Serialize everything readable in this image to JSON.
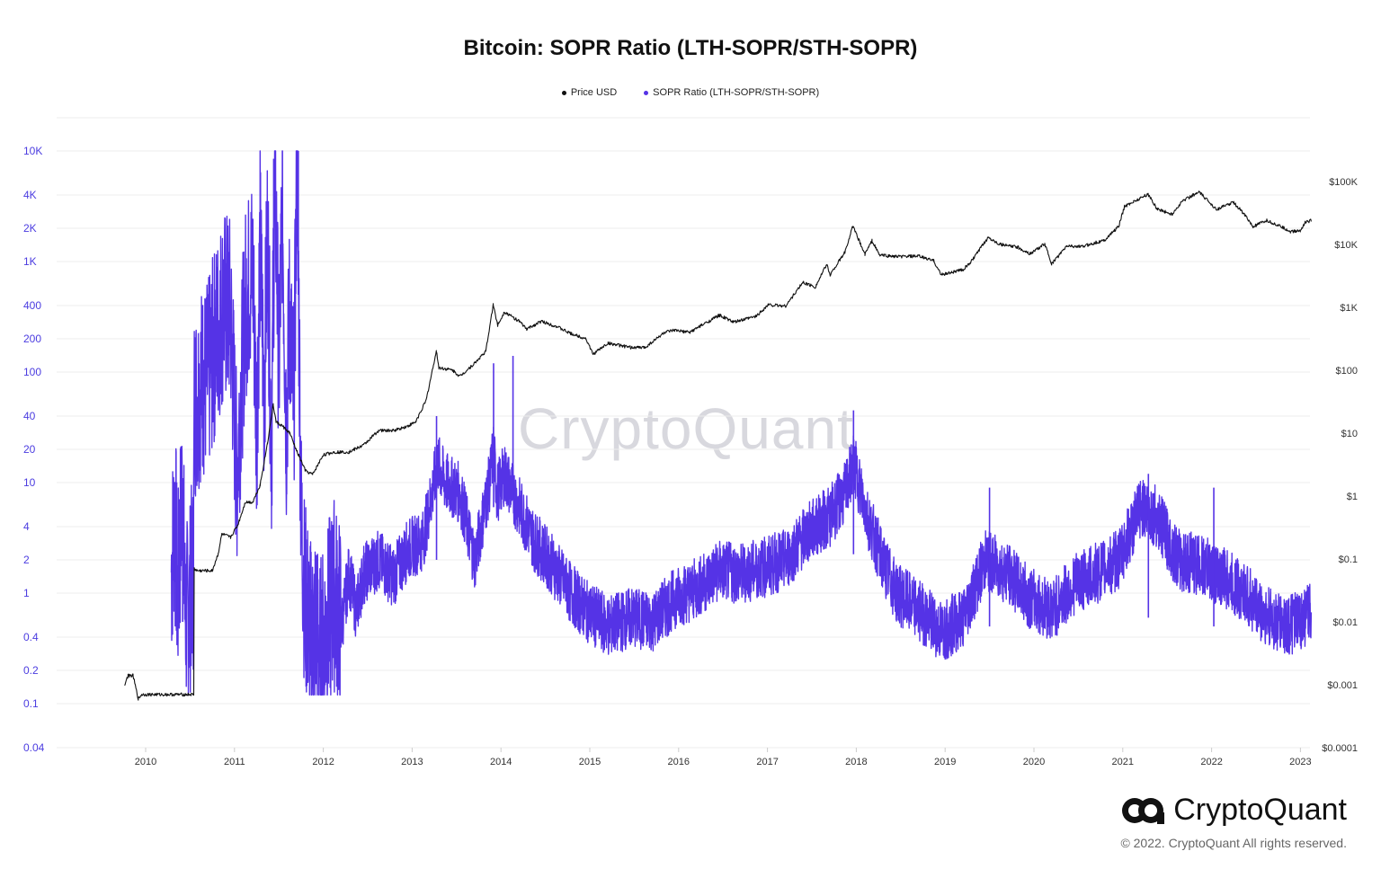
{
  "chart_data": {
    "type": "line",
    "title": "Bitcoin: SOPR Ratio (LTH-SOPR/STH-SOPR)",
    "legend_placement": "top-center",
    "grid": "horizontal",
    "x_axis": {
      "range": [
        "2009-06",
        "2023-01"
      ],
      "ticks": [
        "2010",
        "2011",
        "2012",
        "2013",
        "2014",
        "2015",
        "2016",
        "2017",
        "2018",
        "2019",
        "2020",
        "2021",
        "2022",
        "2023"
      ]
    },
    "y_left": {
      "scale": "log",
      "range": [
        0.04,
        10000
      ],
      "ticks": [
        {
          "v": 10000,
          "label": "10K"
        },
        {
          "v": 4000,
          "label": "4K"
        },
        {
          "v": 2000,
          "label": "2K"
        },
        {
          "v": 1000,
          "label": "1K"
        },
        {
          "v": 400,
          "label": "400"
        },
        {
          "v": 200,
          "label": "200"
        },
        {
          "v": 100,
          "label": "100"
        },
        {
          "v": 40,
          "label": "40"
        },
        {
          "v": 20,
          "label": "20"
        },
        {
          "v": 10,
          "label": "10"
        },
        {
          "v": 4,
          "label": "4"
        },
        {
          "v": 2,
          "label": "2"
        },
        {
          "v": 1,
          "label": "1"
        },
        {
          "v": 0.4,
          "label": "0.4"
        },
        {
          "v": 0.2,
          "label": "0.2"
        },
        {
          "v": 0.1,
          "label": "0.1"
        },
        {
          "v": 0.04,
          "label": "0.04"
        }
      ]
    },
    "y_right": {
      "scale": "log",
      "range": [
        0.0001,
        100000
      ],
      "ticks": [
        {
          "v": 100000,
          "label": "$100K"
        },
        {
          "v": 10000,
          "label": "$10K"
        },
        {
          "v": 1000,
          "label": "$1K"
        },
        {
          "v": 100,
          "label": "$100"
        },
        {
          "v": 10,
          "label": "$10"
        },
        {
          "v": 1,
          "label": "$1"
        },
        {
          "v": 0.1,
          "label": "$0.1"
        },
        {
          "v": 0.01,
          "label": "$0.01"
        },
        {
          "v": 0.001,
          "label": "$0.001"
        },
        {
          "v": 0.0001,
          "label": "$0.0001"
        }
      ]
    },
    "series": [
      {
        "name": "Price USD",
        "axis": "right",
        "color": "#111111",
        "points": [
          [
            "2009-10-05",
            0.001
          ],
          [
            "2009-10-20",
            0.0014
          ],
          [
            "2009-11-10",
            0.0014
          ],
          [
            "2009-12-01",
            0.0006
          ],
          [
            "2009-12-15",
            0.0007
          ],
          [
            "2010-07-16",
            0.0007
          ],
          [
            "2010-07-18",
            0.07
          ],
          [
            "2010-08-01",
            0.065
          ],
          [
            "2010-10-01",
            0.065
          ],
          [
            "2010-10-25",
            0.12
          ],
          [
            "2010-11-10",
            0.25
          ],
          [
            "2010-12-15",
            0.22
          ],
          [
            "2011-01-15",
            0.35
          ],
          [
            "2011-02-15",
            0.8
          ],
          [
            "2011-03-15",
            0.8
          ],
          [
            "2011-04-15",
            1.5
          ],
          [
            "2011-05-15",
            7
          ],
          [
            "2011-06-08",
            28
          ],
          [
            "2011-06-20",
            15
          ],
          [
            "2011-07-15",
            13
          ],
          [
            "2011-08-15",
            10
          ],
          [
            "2011-09-15",
            5
          ],
          [
            "2011-10-20",
            2.5
          ],
          [
            "2011-11-18",
            2.2
          ],
          [
            "2011-12-31",
            4.5
          ],
          [
            "2012-02-15",
            5
          ],
          [
            "2012-04-15",
            5
          ],
          [
            "2012-06-15",
            6.5
          ],
          [
            "2012-08-15",
            11
          ],
          [
            "2012-10-15",
            11
          ],
          [
            "2012-12-15",
            13
          ],
          [
            "2013-01-15",
            15
          ],
          [
            "2013-02-28",
            33
          ],
          [
            "2013-04-09",
            200
          ],
          [
            "2013-04-20",
            110
          ],
          [
            "2013-06-15",
            100
          ],
          [
            "2013-07-15",
            80
          ],
          [
            "2013-09-15",
            130
          ],
          [
            "2013-10-30",
            200
          ],
          [
            "2013-11-30",
            1100
          ],
          [
            "2013-12-18",
            520
          ],
          [
            "2014-01-15",
            850
          ],
          [
            "2014-03-15",
            600
          ],
          [
            "2014-04-15",
            450
          ],
          [
            "2014-06-15",
            600
          ],
          [
            "2014-08-15",
            500
          ],
          [
            "2014-10-15",
            380
          ],
          [
            "2014-12-15",
            320
          ],
          [
            "2015-01-14",
            180
          ],
          [
            "2015-03-15",
            270
          ],
          [
            "2015-06-15",
            230
          ],
          [
            "2015-08-15",
            230
          ],
          [
            "2015-11-04",
            400
          ],
          [
            "2015-12-15",
            430
          ],
          [
            "2016-02-15",
            400
          ],
          [
            "2016-06-16",
            750
          ],
          [
            "2016-08-15",
            580
          ],
          [
            "2016-11-15",
            720
          ],
          [
            "2017-01-04",
            1100
          ],
          [
            "2017-03-15",
            1050
          ],
          [
            "2017-05-25",
            2500
          ],
          [
            "2017-07-15",
            2100
          ],
          [
            "2017-09-01",
            4800
          ],
          [
            "2017-09-15",
            3300
          ],
          [
            "2017-11-15",
            7500
          ],
          [
            "2017-12-17",
            19500
          ],
          [
            "2018-02-06",
            7000
          ],
          [
            "2018-03-05",
            11500
          ],
          [
            "2018-04-05",
            6800
          ],
          [
            "2018-06-15",
            6400
          ],
          [
            "2018-09-15",
            6500
          ],
          [
            "2018-11-15",
            5500
          ],
          [
            "2018-12-15",
            3300
          ],
          [
            "2019-03-15",
            4000
          ],
          [
            "2019-04-15",
            5200
          ],
          [
            "2019-06-26",
            13000
          ],
          [
            "2019-08-15",
            10000
          ],
          [
            "2019-10-26",
            9000
          ],
          [
            "2019-12-15",
            7100
          ],
          [
            "2020-02-15",
            10200
          ],
          [
            "2020-03-13",
            4900
          ],
          [
            "2020-05-15",
            9500
          ],
          [
            "2020-07-15",
            9200
          ],
          [
            "2020-09-15",
            10800
          ],
          [
            "2020-10-15",
            11500
          ],
          [
            "2020-12-15",
            19500
          ],
          [
            "2021-01-08",
            40000
          ],
          [
            "2021-02-15",
            48000
          ],
          [
            "2021-04-14",
            63000
          ],
          [
            "2021-05-20",
            37000
          ],
          [
            "2021-07-20",
            30000
          ],
          [
            "2021-09-05",
            50000
          ],
          [
            "2021-11-10",
            68000
          ],
          [
            "2022-01-22",
            36000
          ],
          [
            "2022-03-29",
            47000
          ],
          [
            "2022-05-15",
            30000
          ],
          [
            "2022-06-18",
            19000
          ],
          [
            "2022-08-15",
            24000
          ],
          [
            "2022-10-15",
            19000
          ],
          [
            "2022-11-21",
            16000
          ],
          [
            "2022-12-31",
            16500
          ],
          [
            "2023-01-20",
            22500
          ],
          [
            "2023-02-15",
            24000
          ]
        ]
      },
      {
        "name": "SOPR Ratio (LTH-SOPR/STH-SOPR)",
        "axis": "left",
        "color": "#5533e6",
        "points": [
          [
            "2010-04-15",
            1.6
          ],
          [
            "2010-05-01",
            6
          ],
          [
            "2010-05-10",
            0.8
          ],
          [
            "2010-06-01",
            11
          ],
          [
            "2010-06-10",
            0.7
          ],
          [
            "2010-06-25",
            0.6
          ],
          [
            "2010-07-05",
            1.2
          ],
          [
            "2010-07-15",
            1.5
          ],
          [
            "2010-07-18",
            50
          ],
          [
            "2010-08-15",
            80
          ],
          [
            "2010-09-15",
            90
          ],
          [
            "2010-10-15",
            200
          ],
          [
            "2010-11-15",
            400
          ],
          [
            "2010-12-15",
            350
          ],
          [
            "2011-01-10",
            12
          ],
          [
            "2011-02-15",
            400
          ],
          [
            "2011-03-15",
            900
          ],
          [
            "2011-04-01",
            30
          ],
          [
            "2011-04-15",
            1500
          ],
          [
            "2011-05-01",
            60
          ],
          [
            "2011-05-15",
            2000
          ],
          [
            "2011-06-01",
            20
          ],
          [
            "2011-06-15",
            8000
          ],
          [
            "2011-07-01",
            100
          ],
          [
            "2011-07-15",
            3500
          ],
          [
            "2011-08-01",
            30
          ],
          [
            "2011-08-15",
            400
          ],
          [
            "2011-09-01",
            40
          ],
          [
            "2011-09-15",
            10000
          ],
          [
            "2011-10-01",
            5
          ],
          [
            "2011-10-15",
            1
          ],
          [
            "2011-11-15",
            0.35
          ],
          [
            "2011-12-01",
            0.6
          ],
          [
            "2011-12-15",
            0.25
          ],
          [
            "2012-01-15",
            0.5
          ],
          [
            "2012-02-15",
            1
          ],
          [
            "2012-03-15",
            0.5
          ],
          [
            "2012-04-15",
            1.5
          ],
          [
            "2012-05-15",
            0.7
          ],
          [
            "2012-06-15",
            1.5
          ],
          [
            "2012-08-15",
            2
          ],
          [
            "2012-10-15",
            1.4
          ],
          [
            "2012-12-15",
            2.5
          ],
          [
            "2013-02-15",
            3
          ],
          [
            "2013-04-15",
            15
          ],
          [
            "2013-05-15",
            10
          ],
          [
            "2013-07-15",
            8
          ],
          [
            "2013-09-15",
            2
          ],
          [
            "2013-11-15",
            10
          ],
          [
            "2013-12-01",
            20
          ],
          [
            "2013-12-15",
            8
          ],
          [
            "2014-01-15",
            12
          ],
          [
            "2014-03-15",
            6
          ],
          [
            "2014-05-15",
            3
          ],
          [
            "2014-07-15",
            2
          ],
          [
            "2014-10-15",
            1
          ],
          [
            "2014-12-15",
            0.7
          ],
          [
            "2015-03-15",
            0.5
          ],
          [
            "2015-06-15",
            0.6
          ],
          [
            "2015-09-15",
            0.55
          ],
          [
            "2015-12-15",
            0.9
          ],
          [
            "2016-03-15",
            1.1
          ],
          [
            "2016-06-15",
            1.6
          ],
          [
            "2016-09-15",
            1.5
          ],
          [
            "2016-12-15",
            1.7
          ],
          [
            "2017-03-15",
            2
          ],
          [
            "2017-06-15",
            3.5
          ],
          [
            "2017-09-15",
            5
          ],
          [
            "2017-11-15",
            8
          ],
          [
            "2017-12-20",
            15
          ],
          [
            "2018-02-15",
            5
          ],
          [
            "2018-04-15",
            2
          ],
          [
            "2018-06-15",
            1
          ],
          [
            "2018-09-15",
            0.7
          ],
          [
            "2018-12-15",
            0.45
          ],
          [
            "2019-03-15",
            0.6
          ],
          [
            "2019-06-15",
            2
          ],
          [
            "2019-09-15",
            1.5
          ],
          [
            "2019-12-15",
            0.9
          ],
          [
            "2020-03-15",
            0.7
          ],
          [
            "2020-06-15",
            1.2
          ],
          [
            "2020-09-15",
            1.5
          ],
          [
            "2020-12-15",
            2
          ],
          [
            "2021-03-15",
            6
          ],
          [
            "2021-05-15",
            5
          ],
          [
            "2021-08-15",
            2
          ],
          [
            "2021-11-15",
            1.8
          ],
          [
            "2022-02-15",
            1.4
          ],
          [
            "2022-05-15",
            1
          ],
          [
            "2022-08-15",
            0.6
          ],
          [
            "2022-11-15",
            0.5
          ],
          [
            "2023-02-15",
            0.65
          ]
        ],
        "spikes": [
          [
            "2010-05-01",
            6
          ],
          [
            "2010-06-01",
            11
          ],
          [
            "2011-06-10",
            8500
          ],
          [
            "2011-09-20",
            10000
          ],
          [
            "2013-04-10",
            40
          ],
          [
            "2013-12-01",
            120
          ],
          [
            "2014-02-20",
            140
          ],
          [
            "2017-12-20",
            45
          ],
          [
            "2019-07-01",
            9
          ],
          [
            "2021-04-15",
            12
          ],
          [
            "2022-01-10",
            9
          ]
        ]
      }
    ]
  },
  "watermark": "CryptoQuant",
  "brand": {
    "logo_text": "CryptoQuant",
    "logo_icon": "cryptoquant-logo-icon",
    "copyright": "© 2022. CryptoQuant All rights reserved."
  }
}
